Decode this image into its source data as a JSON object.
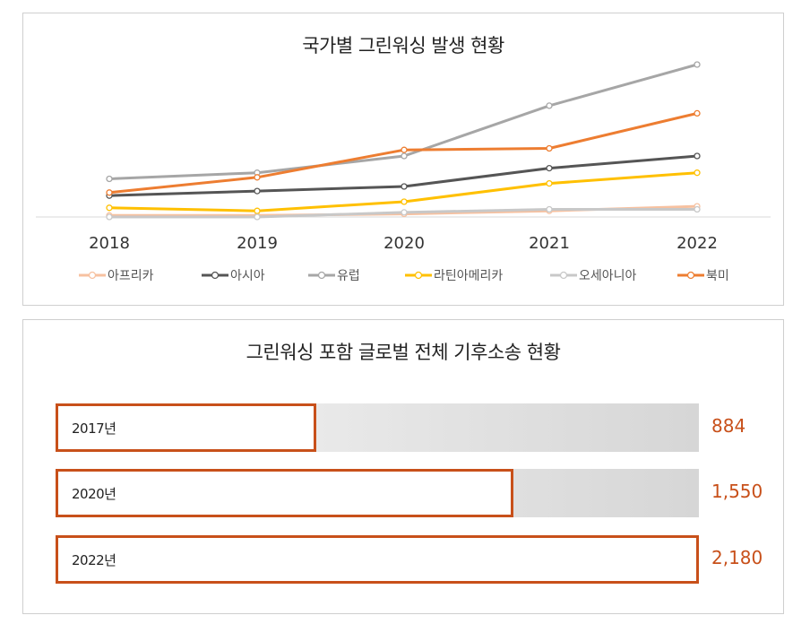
{
  "colors": {
    "africa": "#f7c1a0",
    "asia": "#555555",
    "europe": "#a6a6a6",
    "latam": "#ffc000",
    "oceania": "#c8c8c8",
    "namerica": "#ed7d31",
    "bar_accent": "#c8501a"
  },
  "chart_data": [
    {
      "type": "line",
      "title": "국가별 그린워싱 발생 현황",
      "x": [
        "2018",
        "2019",
        "2020",
        "2021",
        "2022"
      ],
      "ylim": [
        0,
        100
      ],
      "grid": false,
      "legend": "bottom",
      "series": [
        {
          "name": "아프리카",
          "color_key": "africa",
          "values": [
            1,
            1,
            2,
            4,
            7
          ]
        },
        {
          "name": "아시아",
          "color_key": "asia",
          "values": [
            14,
            17,
            20,
            32,
            40
          ]
        },
        {
          "name": "유럽",
          "color_key": "europe",
          "values": [
            25,
            29,
            40,
            73,
            100
          ]
        },
        {
          "name": "라틴아메리카",
          "color_key": "latam",
          "values": [
            6,
            4,
            10,
            22,
            29
          ]
        },
        {
          "name": "오세아니아",
          "color_key": "oceania",
          "values": [
            0,
            0,
            3,
            5,
            5
          ]
        },
        {
          "name": "북미",
          "color_key": "namerica",
          "values": [
            16,
            26,
            44,
            45,
            68
          ]
        }
      ]
    },
    {
      "type": "bar",
      "orientation": "horizontal",
      "title": "그린워싱 포함 글로벌 전체 기후소송 현황",
      "categories": [
        "2017년",
        "2020년",
        "2022년"
      ],
      "values": [
        884,
        1550,
        2180
      ],
      "value_labels": [
        "884",
        "1,550",
        "2,180"
      ],
      "xlim": [
        0,
        2180
      ]
    }
  ]
}
